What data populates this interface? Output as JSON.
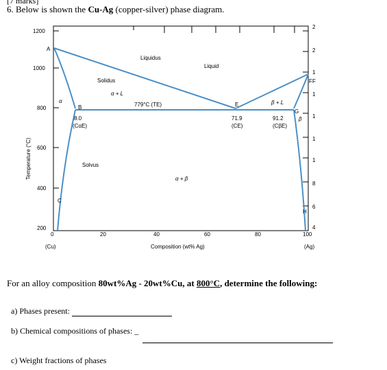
{
  "header": {
    "cut_text": "[7 marks]",
    "number": "6.",
    "before": "Below is shown the",
    "bold": "Cu-Ag",
    "after": "(copper-silver) phase diagram."
  },
  "diagram": {
    "y_axis_label": "Temperature (°C)",
    "x_axis_label": "Composition (wt% Ag)",
    "x_ticks": [
      "0",
      "20",
      "40",
      "60",
      "80",
      "100"
    ],
    "y_ticks": [
      "200",
      "400",
      "600",
      "800",
      "1000",
      "1200"
    ],
    "x_end_left": "(Cu)",
    "x_end_right": "(Ag)",
    "right_ticks": [
      "2",
      "2",
      "1",
      "F",
      "1",
      "1",
      "1",
      "1",
      "8",
      "6",
      "4"
    ],
    "labels": {
      "A": "A",
      "B": "B",
      "C": "C",
      "E": "E",
      "F": "F",
      "G": "G",
      "H": "H",
      "liquidus": "Liquidus",
      "liquid": "Liquid",
      "solidus": "Solidus",
      "solvus": "Solvus",
      "alpha": "α",
      "alpha_L": "α + L",
      "beta_L": "β + L",
      "beta": "β",
      "alpha_beta": "α + β",
      "eutectic": "779°C (TE)",
      "b_comp": "8.0",
      "b_sub": "(CαE)",
      "e_comp": "71.9",
      "e_sub": "(CE)",
      "g_comp": "91.2",
      "g_sub": "(CβE)"
    },
    "key_points": {
      "A_melting_Cu": {
        "composition": 0,
        "temperature": 1085
      },
      "B_alpha_max": {
        "composition": 8.0,
        "temperature": 779
      },
      "E_eutectic": {
        "composition": 71.9,
        "temperature": 779
      },
      "G_beta_max": {
        "composition": 91.2,
        "temperature": 779
      },
      "F_melting_Ag": {
        "composition": 100,
        "temperature": 962
      }
    },
    "axes": {
      "x_range": [
        0,
        100
      ],
      "y_range": [
        200,
        1200
      ]
    }
  },
  "question": {
    "prefix": "For an alloy composition",
    "alloy": "80wt%Ag - 20wt%Cu,",
    "at": "at",
    "temp": "800°C",
    "suffix": ", determine the following:",
    "a": "a) Phases present:",
    "b": "b) Chemical compositions of phases:",
    "b_dash": "_",
    "c": "c) Weight fractions of phases"
  }
}
